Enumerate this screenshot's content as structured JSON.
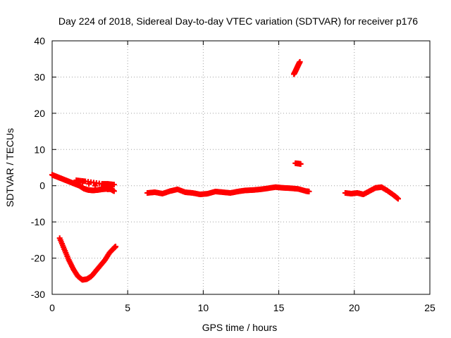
{
  "chart_data": {
    "type": "scatter",
    "title": "Day 224 of 2018, Sidereal Day-to-day VTEC variation (SDTVAR) for receiver p176",
    "xlabel": "GPS time / hours",
    "ylabel": "SDTVAR / TECUs",
    "xlim": [
      0,
      25
    ],
    "ylim": [
      -30,
      40
    ],
    "xticks": [
      0,
      5,
      10,
      15,
      20,
      25
    ],
    "yticks": [
      -30,
      -20,
      -10,
      0,
      10,
      20,
      30,
      40
    ],
    "grid": true,
    "marker": "+",
    "color": "#ff0000",
    "series": [
      {
        "name": "track-1-upper",
        "points": [
          [
            0.0,
            3.0
          ],
          [
            0.3,
            2.5
          ],
          [
            0.6,
            2.0
          ],
          [
            0.9,
            1.5
          ],
          [
            1.2,
            1.0
          ],
          [
            1.5,
            0.5
          ],
          [
            1.8,
            0.0
          ],
          [
            2.1,
            -0.8
          ],
          [
            2.4,
            -1.2
          ],
          [
            2.7,
            -1.3
          ],
          [
            3.0,
            -1.2
          ],
          [
            3.3,
            -1.0
          ],
          [
            3.6,
            -0.9
          ],
          [
            3.9,
            -1.0
          ],
          [
            4.1,
            -1.5
          ],
          [
            1.6,
            1.5
          ],
          [
            2.2,
            1.2
          ],
          [
            3.3,
            0.5
          ],
          [
            3.7,
            0.5
          ],
          [
            4.1,
            0.3
          ]
        ]
      },
      {
        "name": "track-1-lower",
        "points": [
          [
            0.5,
            -14.5
          ],
          [
            0.8,
            -17.5
          ],
          [
            1.1,
            -20.5
          ],
          [
            1.4,
            -23.0
          ],
          [
            1.7,
            -25.0
          ],
          [
            2.0,
            -26.0
          ],
          [
            2.3,
            -25.8
          ],
          [
            2.6,
            -25.0
          ],
          [
            2.9,
            -23.5
          ],
          [
            3.2,
            -22.0
          ],
          [
            3.5,
            -20.5
          ],
          [
            3.8,
            -18.5
          ],
          [
            4.1,
            -17.2
          ],
          [
            4.2,
            -16.8
          ]
        ]
      },
      {
        "name": "track-2",
        "points": [
          [
            6.3,
            -2.0
          ],
          [
            6.8,
            -1.8
          ],
          [
            7.3,
            -2.2
          ],
          [
            7.8,
            -1.5
          ],
          [
            8.3,
            -1.0
          ],
          [
            8.8,
            -1.8
          ],
          [
            9.3,
            -2.0
          ],
          [
            9.8,
            -2.4
          ],
          [
            10.3,
            -2.2
          ],
          [
            10.8,
            -1.6
          ],
          [
            11.3,
            -1.8
          ],
          [
            11.8,
            -2.0
          ],
          [
            12.3,
            -1.6
          ],
          [
            12.8,
            -1.3
          ],
          [
            13.3,
            -1.2
          ],
          [
            13.8,
            -1.0
          ],
          [
            14.3,
            -0.7
          ],
          [
            14.8,
            -0.4
          ],
          [
            15.3,
            -0.6
          ],
          [
            15.8,
            -0.7
          ],
          [
            16.3,
            -0.9
          ],
          [
            16.8,
            -1.5
          ],
          [
            17.0,
            -1.6
          ]
        ]
      },
      {
        "name": "track-2-high",
        "points": [
          [
            16.0,
            30.8
          ],
          [
            16.1,
            31.6
          ],
          [
            16.2,
            32.5
          ],
          [
            16.3,
            33.4
          ],
          [
            16.4,
            34.2
          ]
        ]
      },
      {
        "name": "track-2-mid",
        "points": [
          [
            16.1,
            6.2
          ],
          [
            16.3,
            6.1
          ],
          [
            16.45,
            6.0
          ]
        ]
      },
      {
        "name": "track-3",
        "points": [
          [
            19.4,
            -2.0
          ],
          [
            19.8,
            -2.2
          ],
          [
            20.2,
            -2.0
          ],
          [
            20.6,
            -2.4
          ],
          [
            21.0,
            -1.5
          ],
          [
            21.4,
            -0.6
          ],
          [
            21.8,
            -0.4
          ],
          [
            22.2,
            -1.4
          ],
          [
            22.6,
            -2.6
          ],
          [
            22.9,
            -3.6
          ]
        ]
      }
    ]
  }
}
